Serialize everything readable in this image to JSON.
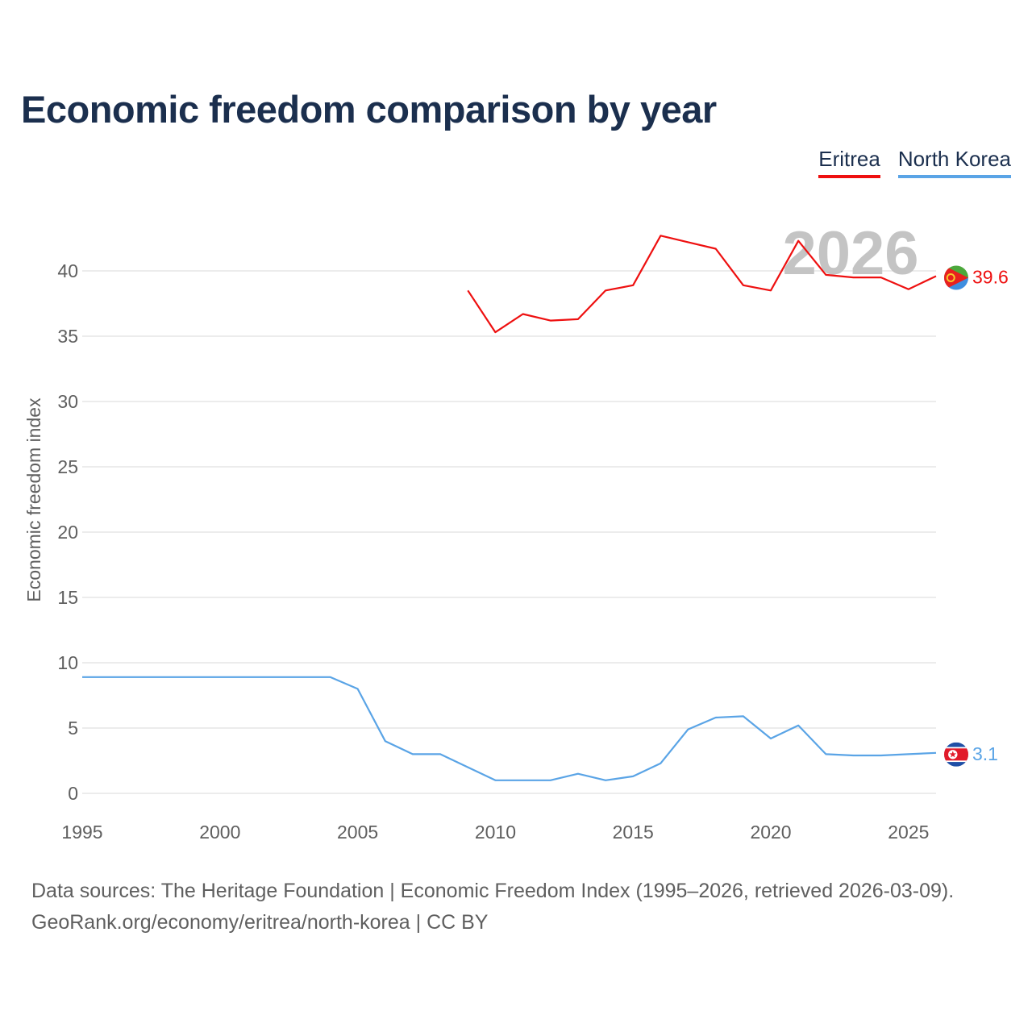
{
  "title": "Economic freedom comparison by year",
  "legend": {
    "eritrea": "Eritrea",
    "north_korea": "North Korea"
  },
  "watermark_year": "2026",
  "footer": {
    "line1": "Data sources: The Heritage Foundation | Economic Freedom Index (1995–2026, retrieved 2026-03-09).",
    "line2": "GeoRank.org/economy/eritrea/north-korea | CC BY"
  },
  "colors": {
    "eritrea": "#ee1010",
    "north_korea": "#5aa4e6",
    "axis_text": "#5f5f5f",
    "grid": "#e6e6e6",
    "watermark": "#c4c4c4"
  },
  "chart_data": {
    "type": "line",
    "title": "Economic freedom comparison by year",
    "xlabel": "",
    "ylabel": "Economic freedom index",
    "xlim": [
      1995,
      2026
    ],
    "ylim": [
      0,
      45
    ],
    "xticks": [
      1995,
      2000,
      2005,
      2010,
      2015,
      2020,
      2025
    ],
    "yticks": [
      0,
      5,
      10,
      15,
      20,
      25,
      30,
      35,
      40
    ],
    "grid": true,
    "series": [
      {
        "name": "Eritrea",
        "color": "#ee1010",
        "end_label": "39.6",
        "flag": "eritrea-flag-icon",
        "points": [
          [
            2009,
            38.5
          ],
          [
            2010,
            35.3
          ],
          [
            2011,
            36.7
          ],
          [
            2012,
            36.2
          ],
          [
            2013,
            36.3
          ],
          [
            2014,
            38.5
          ],
          [
            2015,
            38.9
          ],
          [
            2016,
            42.7
          ],
          [
            2017,
            42.2
          ],
          [
            2018,
            41.7
          ],
          [
            2019,
            38.9
          ],
          [
            2020,
            38.5
          ],
          [
            2021,
            42.3
          ],
          [
            2022,
            39.7
          ],
          [
            2023,
            39.5
          ],
          [
            2024,
            39.5
          ],
          [
            2025,
            38.6
          ],
          [
            2026,
            39.6
          ]
        ]
      },
      {
        "name": "North Korea",
        "color": "#5aa4e6",
        "end_label": "3.1",
        "flag": "north-korea-flag-icon",
        "points": [
          [
            1995,
            8.9
          ],
          [
            1996,
            8.9
          ],
          [
            1997,
            8.9
          ],
          [
            1998,
            8.9
          ],
          [
            1999,
            8.9
          ],
          [
            2000,
            8.9
          ],
          [
            2001,
            8.9
          ],
          [
            2002,
            8.9
          ],
          [
            2003,
            8.9
          ],
          [
            2004,
            8.9
          ],
          [
            2005,
            8.0
          ],
          [
            2006,
            4.0
          ],
          [
            2007,
            3.0
          ],
          [
            2008,
            3.0
          ],
          [
            2009,
            2.0
          ],
          [
            2010,
            1.0
          ],
          [
            2011,
            1.0
          ],
          [
            2012,
            1.0
          ],
          [
            2013,
            1.5
          ],
          [
            2014,
            1.0
          ],
          [
            2015,
            1.3
          ],
          [
            2016,
            2.3
          ],
          [
            2017,
            4.9
          ],
          [
            2018,
            5.8
          ],
          [
            2019,
            5.9
          ],
          [
            2020,
            4.2
          ],
          [
            2021,
            5.2
          ],
          [
            2022,
            3.0
          ],
          [
            2023,
            2.9
          ],
          [
            2024,
            2.9
          ],
          [
            2025,
            3.0
          ],
          [
            2026,
            3.1
          ]
        ]
      }
    ]
  }
}
